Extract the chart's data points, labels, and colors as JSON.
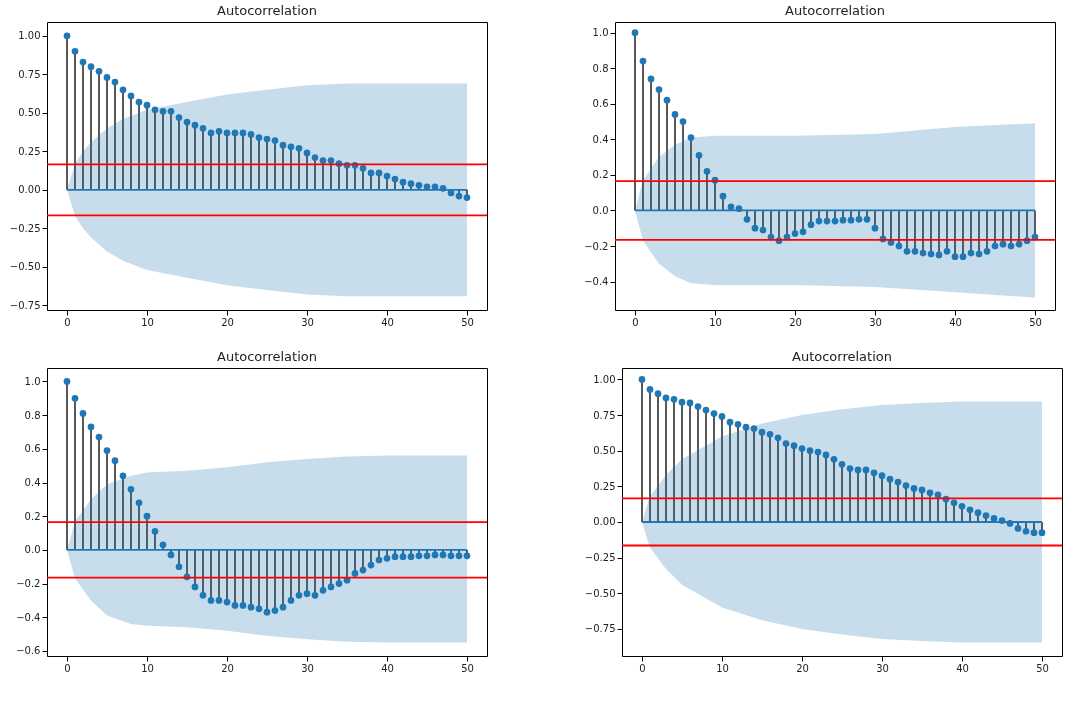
{
  "chart_data": [
    {
      "type": "lollipop",
      "title": "Autocorrelation",
      "marker": "circle",
      "grid": false,
      "xlim": [
        -2.5,
        52.5
      ],
      "xticks": [
        0,
        10,
        20,
        30,
        40,
        50
      ],
      "ylim": [
        -0.78,
        1.09
      ],
      "yticks": [
        {
          "value": -0.75,
          "label": "−0.75"
        },
        {
          "value": -0.5,
          "label": "−0.50"
        },
        {
          "value": -0.25,
          "label": "−0.25"
        },
        {
          "value": 0,
          "label": "0.00"
        },
        {
          "value": 0.25,
          "label": "0.25"
        },
        {
          "value": 0.5,
          "label": "0.50"
        },
        {
          "value": 0.75,
          "label": "0.75"
        },
        {
          "value": 1,
          "label": "1.00"
        }
      ],
      "x": [
        0,
        1,
        2,
        3,
        4,
        5,
        6,
        7,
        8,
        9,
        10,
        11,
        12,
        13,
        14,
        15,
        16,
        17,
        18,
        19,
        20,
        21,
        22,
        23,
        24,
        25,
        26,
        27,
        28,
        29,
        30,
        31,
        32,
        33,
        34,
        35,
        36,
        37,
        38,
        39,
        40,
        41,
        42,
        43,
        44,
        45,
        46,
        47,
        48,
        49,
        50
      ],
      "series": [
        {
          "color": "#1f77b4",
          "values": [
            1.0,
            0.9,
            0.83,
            0.8,
            0.77,
            0.73,
            0.7,
            0.65,
            0.61,
            0.57,
            0.55,
            0.52,
            0.51,
            0.51,
            0.47,
            0.44,
            0.42,
            0.4,
            0.37,
            0.38,
            0.37,
            0.37,
            0.37,
            0.36,
            0.34,
            0.33,
            0.32,
            0.29,
            0.28,
            0.27,
            0.24,
            0.21,
            0.19,
            0.19,
            0.17,
            0.16,
            0.16,
            0.14,
            0.11,
            0.11,
            0.09,
            0.07,
            0.05,
            0.04,
            0.03,
            0.02,
            0.02,
            0.01,
            -0.02,
            -0.04,
            -0.05
          ]
        },
        {
          "type": "line",
          "marker": "none",
          "color": "#1f77b4",
          "x": [
            0,
            1,
            2,
            3,
            5,
            7,
            10,
            15,
            20,
            25,
            30,
            35,
            40,
            50
          ],
          "values": [
            0,
            0,
            0,
            0,
            0,
            0,
            0,
            0,
            0,
            0,
            0,
            0,
            0,
            0
          ],
          "lower": [
            0,
            -0.17,
            -0.25,
            -0.31,
            -0.4,
            -0.46,
            -0.52,
            -0.57,
            -0.62,
            -0.65,
            -0.68,
            -0.69,
            -0.69,
            -0.69
          ],
          "upper": [
            0,
            0.17,
            0.25,
            0.31,
            0.4,
            0.46,
            0.52,
            0.57,
            0.62,
            0.65,
            0.68,
            0.69,
            0.69,
            0.69
          ]
        }
      ],
      "ref_lines": [
        {
          "axis": "y",
          "value": 0.165,
          "color": "#ff0000"
        },
        {
          "axis": "y",
          "value": -0.165,
          "color": "#ff0000"
        }
      ]
    },
    {
      "type": "lollipop",
      "title": "Autocorrelation",
      "marker": "circle",
      "grid": false,
      "xlim": [
        -2.5,
        52.5
      ],
      "xticks": [
        0,
        10,
        20,
        30,
        40,
        50
      ],
      "ylim": [
        -0.56,
        1.06
      ],
      "yticks": [
        {
          "value": -0.4,
          "label": "−0.4"
        },
        {
          "value": -0.2,
          "label": "−0.2"
        },
        {
          "value": 0,
          "label": "0.0"
        },
        {
          "value": 0.2,
          "label": "0.2"
        },
        {
          "value": 0.4,
          "label": "0.4"
        },
        {
          "value": 0.6,
          "label": "0.6"
        },
        {
          "value": 0.8,
          "label": "0.8"
        },
        {
          "value": 1,
          "label": "1.0"
        }
      ],
      "x": [
        0,
        1,
        2,
        3,
        4,
        5,
        6,
        7,
        8,
        9,
        10,
        11,
        12,
        13,
        14,
        15,
        16,
        17,
        18,
        19,
        20,
        21,
        22,
        23,
        24,
        25,
        26,
        27,
        28,
        29,
        30,
        31,
        32,
        33,
        34,
        35,
        36,
        37,
        38,
        39,
        40,
        41,
        42,
        43,
        44,
        45,
        46,
        47,
        48,
        49,
        50
      ],
      "series": [
        {
          "color": "#1f77b4",
          "values": [
            1.0,
            0.84,
            0.74,
            0.68,
            0.62,
            0.54,
            0.5,
            0.41,
            0.31,
            0.22,
            0.17,
            0.08,
            0.02,
            0.01,
            -0.05,
            -0.1,
            -0.11,
            -0.15,
            -0.17,
            -0.15,
            -0.13,
            -0.12,
            -0.08,
            -0.06,
            -0.06,
            -0.06,
            -0.055,
            -0.055,
            -0.05,
            -0.05,
            -0.1,
            -0.16,
            -0.18,
            -0.2,
            -0.23,
            -0.23,
            -0.24,
            -0.245,
            -0.25,
            -0.23,
            -0.26,
            -0.26,
            -0.24,
            -0.245,
            -0.23,
            -0.2,
            -0.19,
            -0.2,
            -0.19,
            -0.17,
            -0.15
          ]
        },
        {
          "type": "line",
          "marker": "none",
          "color": "#1f77b4",
          "x": [
            0,
            1,
            3,
            5,
            7,
            10,
            20,
            30,
            40,
            50
          ],
          "values": [
            0,
            0,
            0,
            0,
            0,
            0,
            0,
            0,
            0,
            0
          ],
          "lower": [
            0,
            -0.17,
            -0.3,
            -0.37,
            -0.41,
            -0.42,
            -0.42,
            -0.43,
            -0.46,
            -0.49
          ],
          "upper": [
            0,
            0.17,
            0.3,
            0.37,
            0.41,
            0.42,
            0.42,
            0.43,
            0.47,
            0.49
          ]
        }
      ],
      "ref_lines": [
        {
          "axis": "y",
          "value": 0.165,
          "color": "#ff0000"
        },
        {
          "axis": "y",
          "value": -0.165,
          "color": "#ff0000"
        }
      ]
    },
    {
      "type": "lollipop",
      "title": "Autocorrelation",
      "marker": "circle",
      "grid": false,
      "xlim": [
        -2.5,
        52.5
      ],
      "xticks": [
        0,
        10,
        20,
        30,
        40,
        50
      ],
      "ylim": [
        -0.63,
        1.08
      ],
      "yticks": [
        {
          "value": -0.6,
          "label": "−0.6"
        },
        {
          "value": -0.4,
          "label": "−0.4"
        },
        {
          "value": -0.2,
          "label": "−0.2"
        },
        {
          "value": 0,
          "label": "0.0"
        },
        {
          "value": 0.2,
          "label": "0.2"
        },
        {
          "value": 0.4,
          "label": "0.4"
        },
        {
          "value": 0.6,
          "label": "0.6"
        },
        {
          "value": 0.8,
          "label": "0.8"
        },
        {
          "value": 1,
          "label": "1.0"
        }
      ],
      "x": [
        0,
        1,
        2,
        3,
        4,
        5,
        6,
        7,
        8,
        9,
        10,
        11,
        12,
        13,
        14,
        15,
        16,
        17,
        18,
        19,
        20,
        21,
        22,
        23,
        24,
        25,
        26,
        27,
        28,
        29,
        30,
        31,
        32,
        33,
        34,
        35,
        36,
        37,
        38,
        39,
        40,
        41,
        42,
        43,
        44,
        45,
        46,
        47,
        48,
        49,
        50
      ],
      "series": [
        {
          "color": "#1f77b4",
          "values": [
            1.0,
            0.9,
            0.81,
            0.73,
            0.67,
            0.59,
            0.53,
            0.44,
            0.36,
            0.28,
            0.2,
            0.11,
            0.03,
            -0.03,
            -0.1,
            -0.16,
            -0.22,
            -0.27,
            -0.3,
            -0.3,
            -0.31,
            -0.33,
            -0.33,
            -0.34,
            -0.35,
            -0.37,
            -0.36,
            -0.34,
            -0.3,
            -0.27,
            -0.26,
            -0.27,
            -0.24,
            -0.22,
            -0.2,
            -0.18,
            -0.14,
            -0.12,
            -0.09,
            -0.06,
            -0.05,
            -0.04,
            -0.04,
            -0.04,
            -0.035,
            -0.035,
            -0.03,
            -0.03,
            -0.035,
            -0.035,
            -0.035
          ]
        },
        {
          "type": "line",
          "marker": "none",
          "color": "#1f77b4",
          "x": [
            0,
            1,
            3,
            5,
            8,
            10,
            15,
            20,
            25,
            30,
            35,
            40,
            50
          ],
          "values": [
            0,
            0,
            0,
            0,
            0,
            0,
            0,
            0,
            0,
            0,
            0,
            0,
            0
          ],
          "lower": [
            0,
            -0.17,
            -0.3,
            -0.39,
            -0.44,
            -0.45,
            -0.46,
            -0.48,
            -0.51,
            -0.53,
            -0.545,
            -0.55,
            -0.55
          ],
          "upper": [
            0,
            0.17,
            0.3,
            0.39,
            0.44,
            0.46,
            0.47,
            0.49,
            0.52,
            0.54,
            0.555,
            0.56,
            0.56
          ]
        }
      ],
      "ref_lines": [
        {
          "axis": "y",
          "value": 0.165,
          "color": "#ff0000"
        },
        {
          "axis": "y",
          "value": -0.165,
          "color": "#ff0000"
        }
      ]
    },
    {
      "type": "lollipop",
      "title": "Autocorrelation",
      "marker": "circle",
      "grid": false,
      "xlim": [
        -2.5,
        52.5
      ],
      "xticks": [
        0,
        10,
        20,
        30,
        40,
        50
      ],
      "ylim": [
        -0.94,
        1.08
      ],
      "yticks": [
        {
          "value": -0.75,
          "label": "−0.75"
        },
        {
          "value": -0.5,
          "label": "−0.50"
        },
        {
          "value": -0.25,
          "label": "−0.25"
        },
        {
          "value": 0,
          "label": "0.00"
        },
        {
          "value": 0.25,
          "label": "0.25"
        },
        {
          "value": 0.5,
          "label": "0.50"
        },
        {
          "value": 0.75,
          "label": "0.75"
        },
        {
          "value": 1,
          "label": "1.00"
        }
      ],
      "x": [
        0,
        1,
        2,
        3,
        4,
        5,
        6,
        7,
        8,
        9,
        10,
        11,
        12,
        13,
        14,
        15,
        16,
        17,
        18,
        19,
        20,
        21,
        22,
        23,
        24,
        25,
        26,
        27,
        28,
        29,
        30,
        31,
        32,
        33,
        34,
        35,
        36,
        37,
        38,
        39,
        40,
        41,
        42,
        43,
        44,
        45,
        46,
        47,
        48,
        49,
        50
      ],
      "series": [
        {
          "color": "#1f77b4",
          "values": [
            1.0,
            0.93,
            0.9,
            0.87,
            0.86,
            0.84,
            0.835,
            0.81,
            0.785,
            0.76,
            0.74,
            0.7,
            0.685,
            0.665,
            0.655,
            0.63,
            0.615,
            0.59,
            0.55,
            0.535,
            0.515,
            0.5,
            0.49,
            0.47,
            0.44,
            0.405,
            0.375,
            0.365,
            0.365,
            0.345,
            0.325,
            0.3,
            0.28,
            0.255,
            0.235,
            0.225,
            0.205,
            0.19,
            0.16,
            0.135,
            0.11,
            0.085,
            0.065,
            0.045,
            0.025,
            0.01,
            -0.01,
            -0.045,
            -0.065,
            -0.075,
            -0.075
          ]
        },
        {
          "type": "line",
          "marker": "none",
          "color": "#1f77b4",
          "x": [
            0,
            1,
            3,
            5,
            10,
            15,
            20,
            25,
            30,
            35,
            40,
            50
          ],
          "values": [
            0,
            0,
            0,
            0,
            0,
            0,
            0,
            0,
            0,
            0,
            0,
            0
          ],
          "lower": [
            0,
            -0.18,
            -0.33,
            -0.44,
            -0.6,
            -0.69,
            -0.75,
            -0.79,
            -0.82,
            -0.835,
            -0.845,
            -0.845
          ],
          "upper": [
            0,
            0.18,
            0.33,
            0.44,
            0.6,
            0.69,
            0.75,
            0.79,
            0.82,
            0.835,
            0.845,
            0.845
          ]
        }
      ],
      "ref_lines": [
        {
          "axis": "y",
          "value": 0.165,
          "color": "#ff0000"
        },
        {
          "axis": "y",
          "value": -0.165,
          "color": "#ff0000"
        }
      ]
    }
  ]
}
